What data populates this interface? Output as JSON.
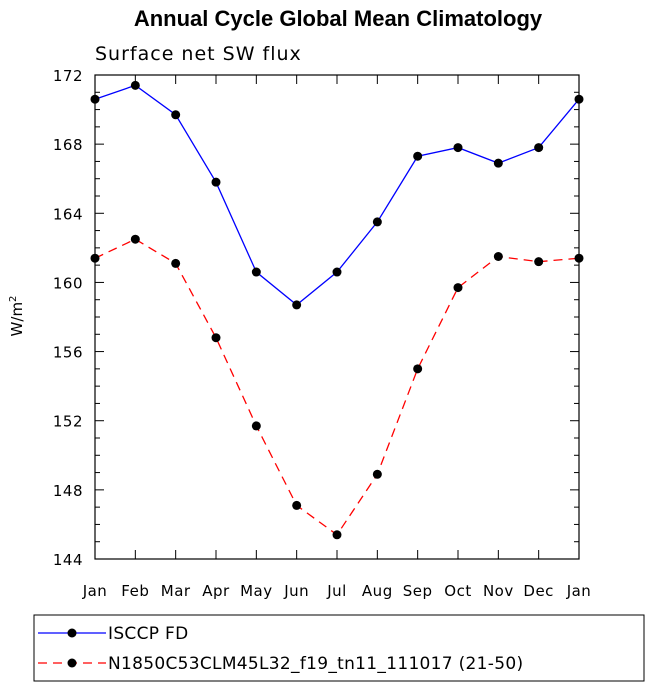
{
  "chart_data": {
    "type": "line",
    "title": "Annual Cycle Global Mean Climatology",
    "subtitle": "Surface net SW flux",
    "ylabel_base": "W/m",
    "ylabel_sup": "2",
    "xlabel": "",
    "categories": [
      "Jan",
      "Feb",
      "Mar",
      "Apr",
      "May",
      "Jun",
      "Jul",
      "Aug",
      "Sep",
      "Oct",
      "Nov",
      "Dec",
      "Jan"
    ],
    "ylim": [
      144,
      172
    ],
    "yticks": [
      144,
      148,
      152,
      156,
      160,
      164,
      168,
      172
    ],
    "ytick_labels": [
      "144",
      "148",
      "152",
      "156",
      "160",
      "164",
      "168",
      "172"
    ],
    "series": [
      {
        "name": "ISCCP FD",
        "color": "#0000ff",
        "dash": "solid",
        "values": [
          170.6,
          171.4,
          169.7,
          165.8,
          160.6,
          158.7,
          160.6,
          163.5,
          167.3,
          167.8,
          166.9,
          167.8,
          170.6
        ]
      },
      {
        "name": "N1850C53CLM45L32_f19_tn11_111017 (21-50)",
        "color": "#ff0000",
        "dash": "dashed",
        "values": [
          161.4,
          162.5,
          161.1,
          156.8,
          151.7,
          147.1,
          145.4,
          148.9,
          155.0,
          159.7,
          161.5,
          161.2,
          161.4
        ]
      }
    ],
    "legend_position": "bottom-left"
  }
}
